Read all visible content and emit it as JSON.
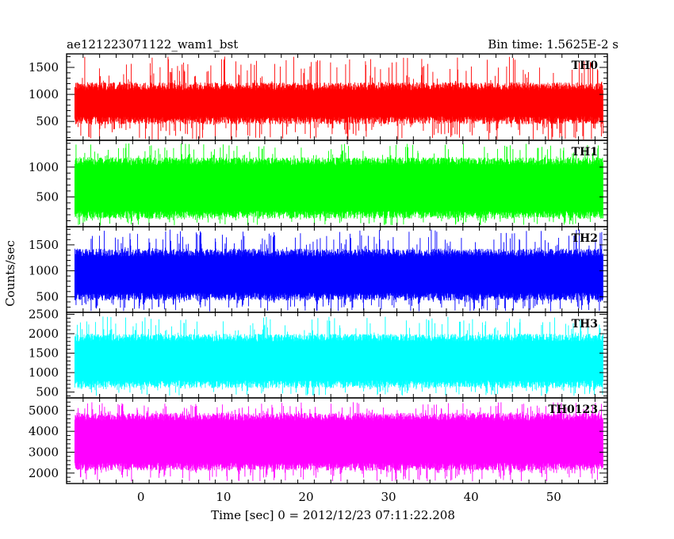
{
  "header": {
    "title": "ae121223071122_wam1_bst",
    "bin_time": "Bin time: 1.5625E-2 s"
  },
  "chart_data": {
    "type": "line",
    "title": "ae121223071122_wam1_bst",
    "xlabel": "Time [sec] 0 = 2012/12/23 07:11:22.208",
    "ylabel": "Counts/sec",
    "xlim": [
      -9,
      56.5
    ],
    "x_ticks": [
      0,
      10,
      20,
      30,
      40,
      50
    ],
    "x_range_data": [
      -8,
      56
    ],
    "panels": [
      {
        "name": "TH0",
        "color": "#ff0000",
        "ylim": [
          150,
          1750
        ],
        "y_ticks": [
          500,
          1000,
          1500
        ],
        "typical": [
          520,
          1150
        ],
        "full": [
          150,
          1700
        ]
      },
      {
        "name": "TH1",
        "color": "#00ff00",
        "ylim": [
          0,
          1450
        ],
        "y_ticks": [
          500,
          1000
        ],
        "typical": [
          200,
          1100
        ],
        "full": [
          20,
          1400
        ]
      },
      {
        "name": "TH2",
        "color": "#0000ff",
        "ylim": [
          200,
          1850
        ],
        "y_ticks": [
          500,
          1000,
          1500
        ],
        "typical": [
          500,
          1350
        ],
        "full": [
          220,
          1800
        ]
      },
      {
        "name": "TH3",
        "color": "#00ffff",
        "ylim": [
          350,
          2550
        ],
        "y_ticks": [
          500,
          1000,
          1500,
          2000,
          2500
        ],
        "typical": [
          700,
          1900
        ],
        "full": [
          400,
          2450
        ]
      },
      {
        "name": "TH0123",
        "color": "#ff00ff",
        "ylim": [
          1500,
          5600
        ],
        "y_ticks": [
          2000,
          3000,
          4000,
          5000
        ],
        "typical": [
          2300,
          4700
        ],
        "full": [
          1600,
          5400
        ]
      }
    ]
  }
}
